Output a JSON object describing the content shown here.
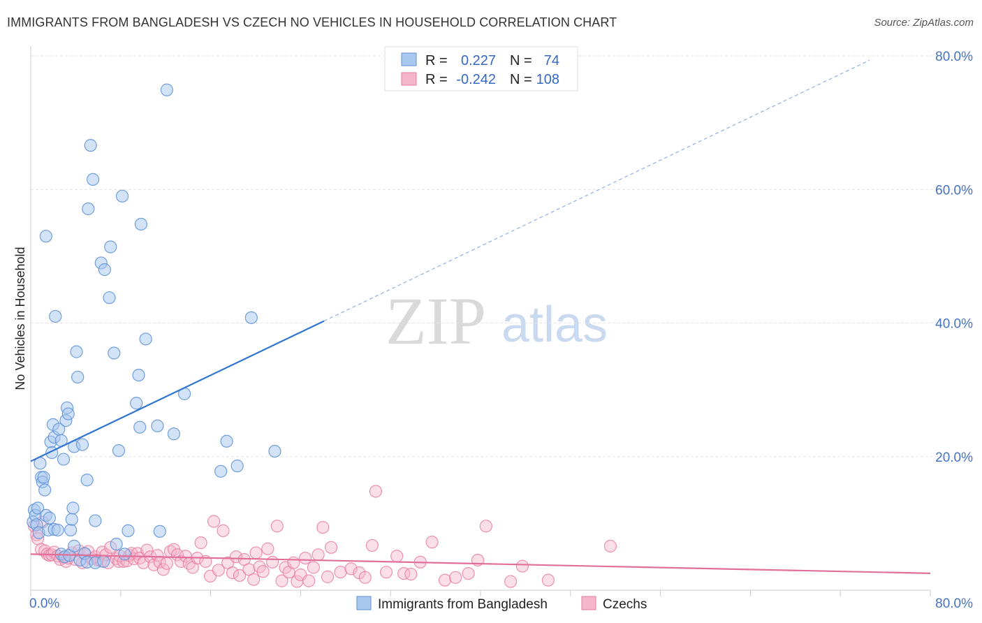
{
  "title": "IMMIGRANTS FROM BANGLADESH VS CZECH NO VEHICLES IN HOUSEHOLD CORRELATION CHART",
  "source": "Source: ZipAtlas.com",
  "watermark": {
    "zip": "ZIP",
    "atlas": "atlas"
  },
  "colors": {
    "blue_fill": "#a8c8ef",
    "blue_stroke": "#5b8fd6",
    "blue_line": "#2e74d0",
    "pink_fill": "#f5b6cb",
    "pink_stroke": "#e8799d",
    "pink_line": "#e0709a",
    "grid": "#e4e4e4",
    "tick_text": "#4472c4"
  },
  "legend": {
    "rows": [
      {
        "r_label": "R =",
        "r_value": "0.227",
        "n_label": "N =",
        "n_value": "74"
      },
      {
        "r_label": "R =",
        "r_value": "-0.242",
        "n_label": "N =",
        "n_value": "108"
      }
    ]
  },
  "chart_data": {
    "type": "scatter",
    "title": "IMMIGRANTS FROM BANGLADESH VS CZECH NO VEHICLES IN HOUSEHOLD CORRELATION CHART",
    "xlabel": "",
    "ylabel": "No Vehicles in Household",
    "xlim": [
      0,
      80
    ],
    "ylim": [
      0,
      80
    ],
    "x_tick_labels": [
      "0.0%",
      "80.0%"
    ],
    "y_ticks": [
      20,
      40,
      60,
      80
    ],
    "y_tick_labels": [
      "20.0%",
      "40.0%",
      "60.0%",
      "80.0%"
    ],
    "grid": true,
    "series": [
      {
        "name": "Immigrants from Bangladesh",
        "color": "#a8c8ef",
        "r": 0.227,
        "n": 74,
        "trend": {
          "x0": 0,
          "y0": 19.3,
          "x1": 25,
          "y1": 40.3,
          "dashed_to_x": 71.5
        },
        "points": [
          [
            0.2,
            10.2
          ],
          [
            0.3,
            12.0
          ],
          [
            0.4,
            11.2
          ],
          [
            0.5,
            9.8
          ],
          [
            0.6,
            12.3
          ],
          [
            0.7,
            8.6
          ],
          [
            0.8,
            19.0
          ],
          [
            0.9,
            16.9
          ],
          [
            1.0,
            16.2
          ],
          [
            1.1,
            16.9
          ],
          [
            1.2,
            15.0
          ],
          [
            1.3,
            53.0
          ],
          [
            1.3,
            11.2
          ],
          [
            1.5,
            9.0
          ],
          [
            1.6,
            10.8
          ],
          [
            1.7,
            22.2
          ],
          [
            1.8,
            20.6
          ],
          [
            1.9,
            24.8
          ],
          [
            2.0,
            22.9
          ],
          [
            2.0,
            9.1
          ],
          [
            2.1,
            41.0
          ],
          [
            2.3,
            9.0
          ],
          [
            2.4,
            24.1
          ],
          [
            2.6,
            5.4
          ],
          [
            2.6,
            22.4
          ],
          [
            2.8,
            19.6
          ],
          [
            2.9,
            5.0
          ],
          [
            3.0,
            25.4
          ],
          [
            3.1,
            27.3
          ],
          [
            3.2,
            26.4
          ],
          [
            3.3,
            5.2
          ],
          [
            3.4,
            9.0
          ],
          [
            3.5,
            10.6
          ],
          [
            3.6,
            12.3
          ],
          [
            3.7,
            21.5
          ],
          [
            3.7,
            6.6
          ],
          [
            3.9,
            35.7
          ],
          [
            4.0,
            31.9
          ],
          [
            4.2,
            4.5
          ],
          [
            4.4,
            21.8
          ],
          [
            4.6,
            5.5
          ],
          [
            4.8,
            4.2
          ],
          [
            4.8,
            16.5
          ],
          [
            4.9,
            57.1
          ],
          [
            5.1,
            66.6
          ],
          [
            5.3,
            61.5
          ],
          [
            5.5,
            4.1
          ],
          [
            5.5,
            10.4
          ],
          [
            6.0,
            49.0
          ],
          [
            6.2,
            4.3
          ],
          [
            6.3,
            48.0
          ],
          [
            6.7,
            43.8
          ],
          [
            6.8,
            51.4
          ],
          [
            7.1,
            35.5
          ],
          [
            7.3,
            6.9
          ],
          [
            7.5,
            20.9
          ],
          [
            7.8,
            59.0
          ],
          [
            8.0,
            5.4
          ],
          [
            8.3,
            8.9
          ],
          [
            9.0,
            28.0
          ],
          [
            9.2,
            32.2
          ],
          [
            9.3,
            24.4
          ],
          [
            9.4,
            54.8
          ],
          [
            9.8,
            37.6
          ],
          [
            10.8,
            24.6
          ],
          [
            11.0,
            8.8
          ],
          [
            11.6,
            74.9
          ],
          [
            12.2,
            23.4
          ],
          [
            13.1,
            29.4
          ],
          [
            16.2,
            17.8
          ],
          [
            16.7,
            22.3
          ],
          [
            17.6,
            18.6
          ],
          [
            18.8,
            40.8
          ],
          [
            20.8,
            20.8
          ]
        ]
      },
      {
        "name": "Czechs",
        "color": "#f5b6cb",
        "r": -0.242,
        "n": 108,
        "trend": {
          "x0": 0,
          "y0": 5.4,
          "x1": 80,
          "y1": 2.4
        },
        "points": [
          [
            0.3,
            9.6
          ],
          [
            0.5,
            8.3
          ],
          [
            0.6,
            7.7
          ],
          [
            0.9,
            6.1
          ],
          [
            1.0,
            10.2
          ],
          [
            1.2,
            5.9
          ],
          [
            1.4,
            5.4
          ],
          [
            1.6,
            5.2
          ],
          [
            1.8,
            5.3
          ],
          [
            2.0,
            5.7
          ],
          [
            2.3,
            5.1
          ],
          [
            2.5,
            4.6
          ],
          [
            2.8,
            4.9
          ],
          [
            3.0,
            4.3
          ],
          [
            3.2,
            4.8
          ],
          [
            3.5,
            5.6
          ],
          [
            3.8,
            4.6
          ],
          [
            4.1,
            5.9
          ],
          [
            4.4,
            4.1
          ],
          [
            4.6,
            5.4
          ],
          [
            4.9,
            5.8
          ],
          [
            5.2,
            4.7
          ],
          [
            5.5,
            5.0
          ],
          [
            5.7,
            4.5
          ],
          [
            6.0,
            4.4
          ],
          [
            6.1,
            5.7
          ],
          [
            6.4,
            5.3
          ],
          [
            6.6,
            4.1
          ],
          [
            6.8,
            6.4
          ],
          [
            7.3,
            4.7
          ],
          [
            7.5,
            4.3
          ],
          [
            7.6,
            5.1
          ],
          [
            7.9,
            4.3
          ],
          [
            8.2,
            4.4
          ],
          [
            8.4,
            5.2
          ],
          [
            8.6,
            5.5
          ],
          [
            8.8,
            4.7
          ],
          [
            9.1,
            5.5
          ],
          [
            9.3,
            4.8
          ],
          [
            9.6,
            4.1
          ],
          [
            9.9,
            6.0
          ],
          [
            10.2,
            5.0
          ],
          [
            10.5,
            3.8
          ],
          [
            10.8,
            5.2
          ],
          [
            11.0,
            4.2
          ],
          [
            11.3,
            3.1
          ],
          [
            11.6,
            4.0
          ],
          [
            11.9,
            5.8
          ],
          [
            12.2,
            6.1
          ],
          [
            12.5,
            5.3
          ],
          [
            12.8,
            4.3
          ],
          [
            13.2,
            5.1
          ],
          [
            13.5,
            4.0
          ],
          [
            13.8,
            3.4
          ],
          [
            14.2,
            4.8
          ],
          [
            14.5,
            7.1
          ],
          [
            14.9,
            4.3
          ],
          [
            15.3,
            2.1
          ],
          [
            15.6,
            10.3
          ],
          [
            16.0,
            3.0
          ],
          [
            16.4,
            8.9
          ],
          [
            16.8,
            4.1
          ],
          [
            17.2,
            2.6
          ],
          [
            17.5,
            5.0
          ],
          [
            17.8,
            2.2
          ],
          [
            18.2,
            4.6
          ],
          [
            18.6,
            3.1
          ],
          [
            19.0,
            1.6
          ],
          [
            19.2,
            5.6
          ],
          [
            19.5,
            3.5
          ],
          [
            19.8,
            2.8
          ],
          [
            20.2,
            6.2
          ],
          [
            20.6,
            4.2
          ],
          [
            21.0,
            9.6
          ],
          [
            21.4,
            1.4
          ],
          [
            21.7,
            3.4
          ],
          [
            22.0,
            2.7
          ],
          [
            22.4,
            4.1
          ],
          [
            22.7,
            1.3
          ],
          [
            23.0,
            2.3
          ],
          [
            23.4,
            4.8
          ],
          [
            23.7,
            1.4
          ],
          [
            24.1,
            3.4
          ],
          [
            24.5,
            5.3
          ],
          [
            24.9,
            9.4
          ],
          [
            25.3,
            2.0
          ],
          [
            25.6,
            6.4
          ],
          [
            26.4,
            2.7
          ],
          [
            27.3,
            3.2
          ],
          [
            28.0,
            2.6
          ],
          [
            28.5,
            1.9
          ],
          [
            29.1,
            6.7
          ],
          [
            29.4,
            14.8
          ],
          [
            30.3,
            2.7
          ],
          [
            31.2,
            5.1
          ],
          [
            31.8,
            2.5
          ],
          [
            32.4,
            2.4
          ],
          [
            33.2,
            4.2
          ],
          [
            34.2,
            7.2
          ],
          [
            35.3,
            1.5
          ],
          [
            36.2,
            1.9
          ],
          [
            37.3,
            2.5
          ],
          [
            38.1,
            4.5
          ],
          [
            38.8,
            9.6
          ],
          [
            40.9,
            1.3
          ],
          [
            41.9,
            3.6
          ],
          [
            44.1,
            1.5
          ],
          [
            49.4,
            6.6
          ]
        ]
      }
    ]
  },
  "bottom_legend": [
    {
      "label": "Immigrants from Bangladesh"
    },
    {
      "label": "Czechs"
    }
  ]
}
